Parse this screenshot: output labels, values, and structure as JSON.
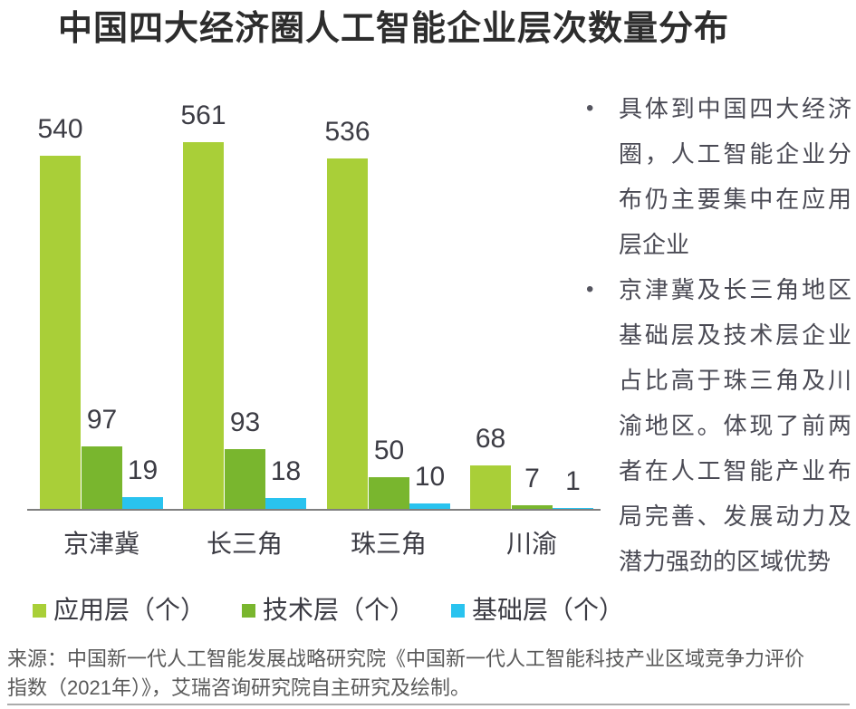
{
  "title": "中国四大经济圈人工智能企业层次数量分布",
  "chart_data": {
    "type": "bar",
    "title": "中国四大经济圈人工智能企业层次数量分布",
    "categories": [
      "京津冀",
      "长三角",
      "珠三角",
      "川渝"
    ],
    "series": [
      {
        "name": "应用层（个）",
        "color": "#a9cf38",
        "values": [
          540,
          561,
          536,
          68
        ]
      },
      {
        "name": "技术层（个）",
        "color": "#79b62e",
        "values": [
          97,
          93,
          50,
          7
        ]
      },
      {
        "name": "基础层（个）",
        "color": "#29c3ef",
        "values": [
          19,
          18,
          10,
          1
        ]
      }
    ],
    "xlabel": "",
    "ylabel": "",
    "ylim": [
      0,
      640
    ],
    "grid": false,
    "data_labels": true,
    "legend_position": "bottom"
  },
  "notes": {
    "bullets": [
      "具体到中国四大经济圈，人工智能企业分布仍主要集中在应用层企业",
      "京津冀及长三角地区基础层及技术层企业占比高于珠三角及川渝地区。体现了前两者在人工智能产业布局完善、发展动力及潜力强劲的区域优势"
    ]
  },
  "source": "来源：中国新一代人工智能发展战略研究院《中国新一代人工智能科技产业区域竞争力评价指数（2021年）》，艾瑞咨询研究院自主研究及绘制。",
  "colors": {
    "app_layer": "#a9cf38",
    "tech_layer": "#79b62e",
    "base_layer": "#29c3ef",
    "axis_line": "#7f7f7f",
    "title_text": "#2d2d2d",
    "label_text": "#3c3c44",
    "note_text": "#4a4a54",
    "source_text": "#595959",
    "bottom_rule": "#ababab"
  }
}
